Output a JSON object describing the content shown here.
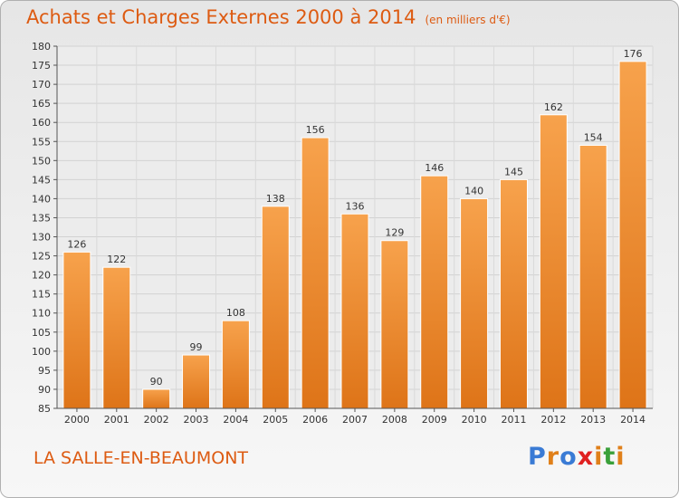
{
  "header": {
    "title": "Achats et Charges Externes 2000 à 2014",
    "unit": "(en milliers d'€)"
  },
  "footer": {
    "commune": "LA SALLE-EN-BEAUMONT",
    "brand": "Proxiti"
  },
  "colors": {
    "accent": "#dd5b12",
    "bar_top": "#f7a24c",
    "bar_bottom": "#de7418",
    "brand_letters": [
      "#3a7bd5",
      "#e0801a",
      "#3a7bd5",
      "#e02020",
      "#e0801a",
      "#3aa03a",
      "#e0801a"
    ]
  },
  "chart_data": {
    "type": "bar",
    "categories": [
      "2000",
      "2001",
      "2002",
      "2003",
      "2004",
      "2005",
      "2006",
      "2007",
      "2008",
      "2009",
      "2010",
      "2011",
      "2012",
      "2013",
      "2014"
    ],
    "values": [
      126,
      122,
      90,
      99,
      108,
      138,
      156,
      136,
      129,
      146,
      140,
      145,
      162,
      154,
      176
    ],
    "data_labels": [
      "126",
      "122",
      "90",
      "99",
      "108",
      "138",
      "156",
      "136",
      "129",
      "146",
      "140",
      "145",
      "162",
      "154",
      "176"
    ],
    "title": "Achats et Charges Externes 2000 à 2014",
    "xlabel": "",
    "ylabel": "",
    "ylim": [
      85,
      180
    ],
    "yticks": [
      85,
      90,
      95,
      100,
      105,
      110,
      115,
      120,
      125,
      130,
      135,
      140,
      145,
      150,
      155,
      160,
      165,
      170,
      175,
      180
    ],
    "grid": true,
    "legend": "none"
  }
}
